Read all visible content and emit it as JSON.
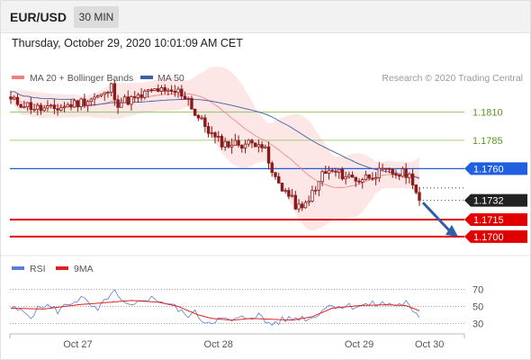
{
  "header": {
    "pair": "EUR/USD",
    "timeframe": "30 MIN"
  },
  "datetime": "Thursday, October 29, 2020 10:01:09 AM CET",
  "colors": {
    "candle": "#8b1a1a",
    "ma20": "#f08080",
    "band_fill": "#fde3e3",
    "ma50": "#3d5fa8",
    "resistance": "#8bc34a",
    "pivot": "#1f5fe0",
    "support": "#e00000",
    "arrow": "#2f5fa8",
    "rsi": "#5a7fd6",
    "rsi_ma": "#e02020"
  },
  "chart_data": [
    {
      "type": "candlestick",
      "legend": {
        "ma20": "MA 20 + Bollinger Bands",
        "ma50": "MA 50",
        "placement": "top-left"
      },
      "source": "Research © 2020 Trading Central",
      "ylim": [
        1.1688,
        1.1858
      ],
      "x_ticks": [
        {
          "label": "Oct 27",
          "index": 20
        },
        {
          "label": "Oct 28",
          "index": 62
        },
        {
          "label": "Oct 29",
          "index": 104
        },
        {
          "label": "Oct 30",
          "index": 125
        }
      ],
      "levels": [
        {
          "value": 1.181,
          "label": "1.1810",
          "kind": "resistance"
        },
        {
          "value": 1.1785,
          "label": "1.1785",
          "kind": "resistance"
        },
        {
          "value": 1.176,
          "label": "1.1760",
          "kind": "pivot"
        },
        {
          "value": 1.1715,
          "label": "1.1715",
          "kind": "support"
        },
        {
          "value": 1.17,
          "label": "1.1700",
          "kind": "support"
        }
      ],
      "last_price": {
        "value": 1.1732,
        "label": "1.1732"
      },
      "forecast_arrow": {
        "from": 1.173,
        "to": 1.17
      },
      "anchors": [
        [
          0,
          1.182
        ],
        [
          4,
          1.1817
        ],
        [
          8,
          1.1813
        ],
        [
          12,
          1.1812
        ],
        [
          16,
          1.1815
        ],
        [
          20,
          1.1818
        ],
        [
          24,
          1.1822
        ],
        [
          28,
          1.1825
        ],
        [
          30,
          1.1832
        ],
        [
          32,
          1.1818
        ],
        [
          34,
          1.182
        ],
        [
          38,
          1.1822
        ],
        [
          40,
          1.1826
        ],
        [
          44,
          1.183
        ],
        [
          46,
          1.1826
        ],
        [
          50,
          1.1828
        ],
        [
          53,
          1.1822
        ],
        [
          55,
          1.1808
        ],
        [
          58,
          1.1798
        ],
        [
          61,
          1.1786
        ],
        [
          64,
          1.1782
        ],
        [
          68,
          1.1782
        ],
        [
          72,
          1.1782
        ],
        [
          74,
          1.1785
        ],
        [
          76,
          1.1775
        ],
        [
          78,
          1.1755
        ],
        [
          82,
          1.174
        ],
        [
          85,
          1.1728
        ],
        [
          87,
          1.1723
        ],
        [
          89,
          1.1735
        ],
        [
          91,
          1.174
        ],
        [
          93,
          1.1756
        ],
        [
          96,
          1.1757
        ],
        [
          100,
          1.1754
        ],
        [
          104,
          1.175
        ],
        [
          108,
          1.1755
        ],
        [
          112,
          1.1757
        ],
        [
          116,
          1.1755
        ],
        [
          118,
          1.1756
        ],
        [
          120,
          1.175
        ],
        [
          121,
          1.174
        ],
        [
          122,
          1.1732
        ]
      ]
    },
    {
      "type": "line",
      "legend": {
        "rsi": "RSI",
        "rsi_ma": "9MA"
      },
      "ylim": [
        20,
        80
      ],
      "y_ticks": [
        70,
        50,
        30
      ],
      "rsi_anchors": [
        [
          0,
          48
        ],
        [
          6,
          40
        ],
        [
          10,
          52
        ],
        [
          14,
          45
        ],
        [
          18,
          55
        ],
        [
          21,
          60
        ],
        [
          24,
          50
        ],
        [
          26,
          44
        ],
        [
          29,
          62
        ],
        [
          31,
          66
        ],
        [
          33,
          55
        ],
        [
          36,
          48
        ],
        [
          40,
          60
        ],
        [
          44,
          58
        ],
        [
          48,
          52
        ],
        [
          52,
          40
        ],
        [
          55,
          42
        ],
        [
          58,
          32
        ],
        [
          62,
          35
        ],
        [
          66,
          33
        ],
        [
          70,
          37
        ],
        [
          74,
          40
        ],
        [
          76,
          32
        ],
        [
          78,
          30
        ],
        [
          82,
          35
        ],
        [
          86,
          37
        ],
        [
          90,
          36
        ],
        [
          93,
          47
        ],
        [
          96,
          52
        ],
        [
          100,
          50
        ],
        [
          104,
          51
        ],
        [
          110,
          53
        ],
        [
          116,
          52
        ],
        [
          118,
          55
        ],
        [
          120,
          42
        ],
        [
          122,
          36
        ]
      ],
      "rsi_ma_anchors": [
        [
          0,
          48
        ],
        [
          10,
          47
        ],
        [
          20,
          52
        ],
        [
          30,
          55
        ],
        [
          36,
          57
        ],
        [
          44,
          55
        ],
        [
          50,
          50
        ],
        [
          56,
          40
        ],
        [
          60,
          36
        ],
        [
          66,
          34
        ],
        [
          72,
          36
        ],
        [
          78,
          35
        ],
        [
          84,
          34
        ],
        [
          90,
          38
        ],
        [
          96,
          48
        ],
        [
          104,
          51
        ],
        [
          112,
          52
        ],
        [
          118,
          51
        ],
        [
          122,
          45
        ]
      ]
    }
  ]
}
